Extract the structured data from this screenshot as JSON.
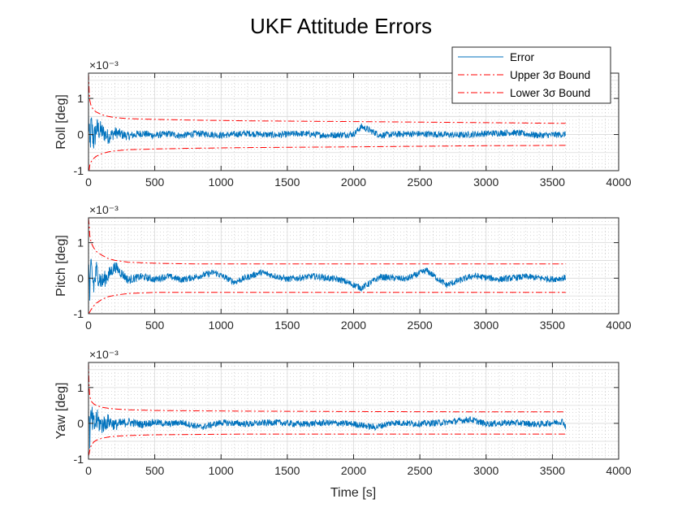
{
  "figure": {
    "title": "UKF Attitude Errors",
    "xlabel": "Time [s]"
  },
  "legend": {
    "placement": "top-right",
    "entries": [
      {
        "label": "Error",
        "color": "#0072BD",
        "style": "solid"
      },
      {
        "label": "Upper 3σ Bound",
        "color": "#FF0000",
        "style": "dash-dot"
      },
      {
        "label": "Lower 3σ Bound",
        "color": "#FF0000",
        "style": "dash-dot"
      }
    ]
  },
  "colors": {
    "error": "#0072BD",
    "bound": "#FF0000",
    "axis": "#262626",
    "grid": "#bdbdbd"
  },
  "chart_data": [
    {
      "type": "line",
      "ylabel": "Roll [deg]",
      "exponent_label": "×10⁻³",
      "xlim": [
        0,
        4000
      ],
      "ylim": [
        -0.001,
        0.0017
      ],
      "xticks": [
        0,
        500,
        1000,
        1500,
        2000,
        2500,
        3000,
        3500,
        4000
      ],
      "yticks": [
        -0.001,
        0,
        0.001
      ],
      "ytick_labels": [
        "-1",
        "0",
        "1"
      ],
      "grid": true,
      "minor_grid": true,
      "series": [
        {
          "name": "Error",
          "x": [
            0,
            10,
            20,
            40,
            60,
            100,
            150,
            200,
            300,
            400,
            500,
            600,
            700,
            800,
            900,
            1000,
            1200,
            1400,
            1600,
            1800,
            2000,
            2060,
            2200,
            2400,
            2600,
            2800,
            3000,
            3200,
            3400,
            3600
          ],
          "y": [
            0.0009,
            -0.0007,
            0.00045,
            -0.0003,
            0.0003,
            0.00015,
            -0.00012,
            0.0001,
            -8e-05,
            6e-05,
            -5e-05,
            4e-05,
            -6e-05,
            5e-05,
            3e-05,
            -4e-05,
            6e-05,
            -3e-05,
            5e-05,
            -4e-05,
            2e-05,
            0.0004,
            -3e-05,
            4e-05,
            2e-05,
            -3e-05,
            5e-05,
            0.0001,
            -4e-05,
            1e-05
          ]
        },
        {
          "name": "Upper 3σ Bound",
          "x": [
            0,
            5,
            10,
            20,
            40,
            60,
            100,
            150,
            200,
            300,
            500,
            800,
            1200,
            2000,
            3000,
            3600
          ],
          "y": [
            0.0017,
            0.0012,
            0.00095,
            0.00078,
            0.00068,
            0.00062,
            0.00055,
            0.0005,
            0.00047,
            0.00044,
            0.00042,
            0.0004,
            0.00038,
            0.00036,
            0.00033,
            0.00031
          ]
        },
        {
          "name": "Lower 3σ Bound",
          "x": [
            0,
            5,
            10,
            20,
            40,
            60,
            100,
            150,
            200,
            300,
            500,
            800,
            1200,
            2000,
            3000,
            3600
          ],
          "y": [
            -0.001,
            -0.00098,
            -0.00085,
            -0.00075,
            -0.00066,
            -0.0006,
            -0.00053,
            -0.00048,
            -0.00045,
            -0.00042,
            -0.0004,
            -0.00038,
            -0.00036,
            -0.00034,
            -0.00031,
            -0.0003
          ]
        }
      ]
    },
    {
      "type": "line",
      "ylabel": "Pitch [deg]",
      "exponent_label": "×10⁻³",
      "xlim": [
        0,
        4000
      ],
      "ylim": [
        -0.001,
        0.0017
      ],
      "xticks": [
        0,
        500,
        1000,
        1500,
        2000,
        2500,
        3000,
        3500,
        4000
      ],
      "yticks": [
        -0.001,
        0,
        0.001
      ],
      "ytick_labels": [
        "-1",
        "0",
        "1"
      ],
      "grid": true,
      "minor_grid": true,
      "series": [
        {
          "name": "Error",
          "x": [
            0,
            10,
            20,
            40,
            60,
            100,
            150,
            200,
            300,
            400,
            500,
            600,
            700,
            800,
            950,
            1100,
            1300,
            1500,
            1700,
            1900,
            2060,
            2200,
            2400,
            2550,
            2700,
            2900,
            3100,
            3300,
            3500,
            3600
          ],
          "y": [
            0.0008,
            -0.0009,
            0.0005,
            -0.0004,
            0.00035,
            -0.0002,
            0.00015,
            0.0006,
            -0.0001,
            8e-05,
            -6e-05,
            0.0001,
            -8e-05,
            5e-05,
            0.0003,
            -0.0002,
            0.0003,
            -5e-05,
            0.0001,
            -8e-05,
            -0.0005,
            6e-05,
            -4e-05,
            0.0004,
            -0.00035,
            0.00012,
            -6e-05,
            8e-05,
            -5e-05,
            2e-05
          ]
        },
        {
          "name": "Upper 3σ Bound",
          "x": [
            0,
            5,
            10,
            20,
            40,
            60,
            100,
            150,
            200,
            300,
            500,
            800,
            1200,
            2000,
            3000,
            3600
          ],
          "y": [
            0.0017,
            0.0015,
            0.0012,
            0.001,
            0.00085,
            0.00075,
            0.00065,
            0.00055,
            0.0005,
            0.00045,
            0.00042,
            0.0004,
            0.0004,
            0.0004,
            0.0004,
            0.0004
          ]
        },
        {
          "name": "Lower 3σ Bound",
          "x": [
            0,
            5,
            10,
            20,
            40,
            60,
            100,
            150,
            200,
            300,
            500,
            800,
            1200,
            2000,
            3000,
            3600
          ],
          "y": [
            -0.001,
            -0.00098,
            -0.00095,
            -0.00088,
            -0.00078,
            -0.0007,
            -0.0006,
            -0.00052,
            -0.00048,
            -0.00043,
            -0.0004,
            -0.0004,
            -0.0004,
            -0.0004,
            -0.0004,
            -0.0004
          ]
        }
      ]
    },
    {
      "type": "line",
      "ylabel": "Yaw [deg]",
      "exponent_label": "×10⁻³",
      "xlim": [
        0,
        4000
      ],
      "ylim": [
        -0.001,
        0.0017
      ],
      "xticks": [
        0,
        500,
        1000,
        1500,
        2000,
        2500,
        3000,
        3500,
        4000
      ],
      "yticks": [
        -0.001,
        0,
        0.001
      ],
      "ytick_labels": [
        "-1",
        "0",
        "1"
      ],
      "grid": true,
      "minor_grid": true,
      "series": [
        {
          "name": "Error",
          "x": [
            0,
            10,
            20,
            40,
            60,
            100,
            150,
            200,
            300,
            400,
            500,
            600,
            700,
            850,
            1000,
            1200,
            1400,
            1600,
            1800,
            2000,
            2160,
            2300,
            2500,
            2700,
            2880,
            3000,
            3200,
            3400,
            3580,
            3600
          ],
          "y": [
            0.0007,
            -0.0006,
            0.0003,
            -0.0002,
            0.00018,
            -0.0001,
            0.00012,
            -8e-05,
            7e-05,
            -5e-05,
            6e-05,
            -4e-05,
            5e-05,
            -0.0002,
            4e-05,
            -3e-05,
            5e-05,
            -4e-05,
            3e-05,
            -3e-05,
            -0.0002,
            4e-05,
            -2e-05,
            5e-05,
            0.0002,
            -3e-05,
            4e-05,
            -5e-05,
            0.0001,
            -0.00018
          ]
        },
        {
          "name": "Upper 3σ Bound",
          "x": [
            0,
            5,
            10,
            20,
            40,
            60,
            100,
            150,
            200,
            300,
            500,
            800,
            1200,
            2000,
            3000,
            3600
          ],
          "y": [
            0.0017,
            0.001,
            0.00075,
            0.00062,
            0.00054,
            0.0005,
            0.00045,
            0.00042,
            0.0004,
            0.00038,
            0.00036,
            0.00035,
            0.00034,
            0.00033,
            0.00032,
            0.00032
          ]
        },
        {
          "name": "Lower 3σ Bound",
          "x": [
            0,
            5,
            10,
            20,
            40,
            60,
            100,
            150,
            200,
            300,
            500,
            800,
            1200,
            2000,
            3000,
            3600
          ],
          "y": [
            -0.0009,
            -0.00085,
            -0.00075,
            -0.00062,
            -0.00052,
            -0.00047,
            -0.00042,
            -0.00038,
            -0.00036,
            -0.00034,
            -0.00032,
            -0.00031,
            -0.0003,
            -0.0003,
            -0.0003,
            -0.0003
          ]
        }
      ]
    }
  ]
}
